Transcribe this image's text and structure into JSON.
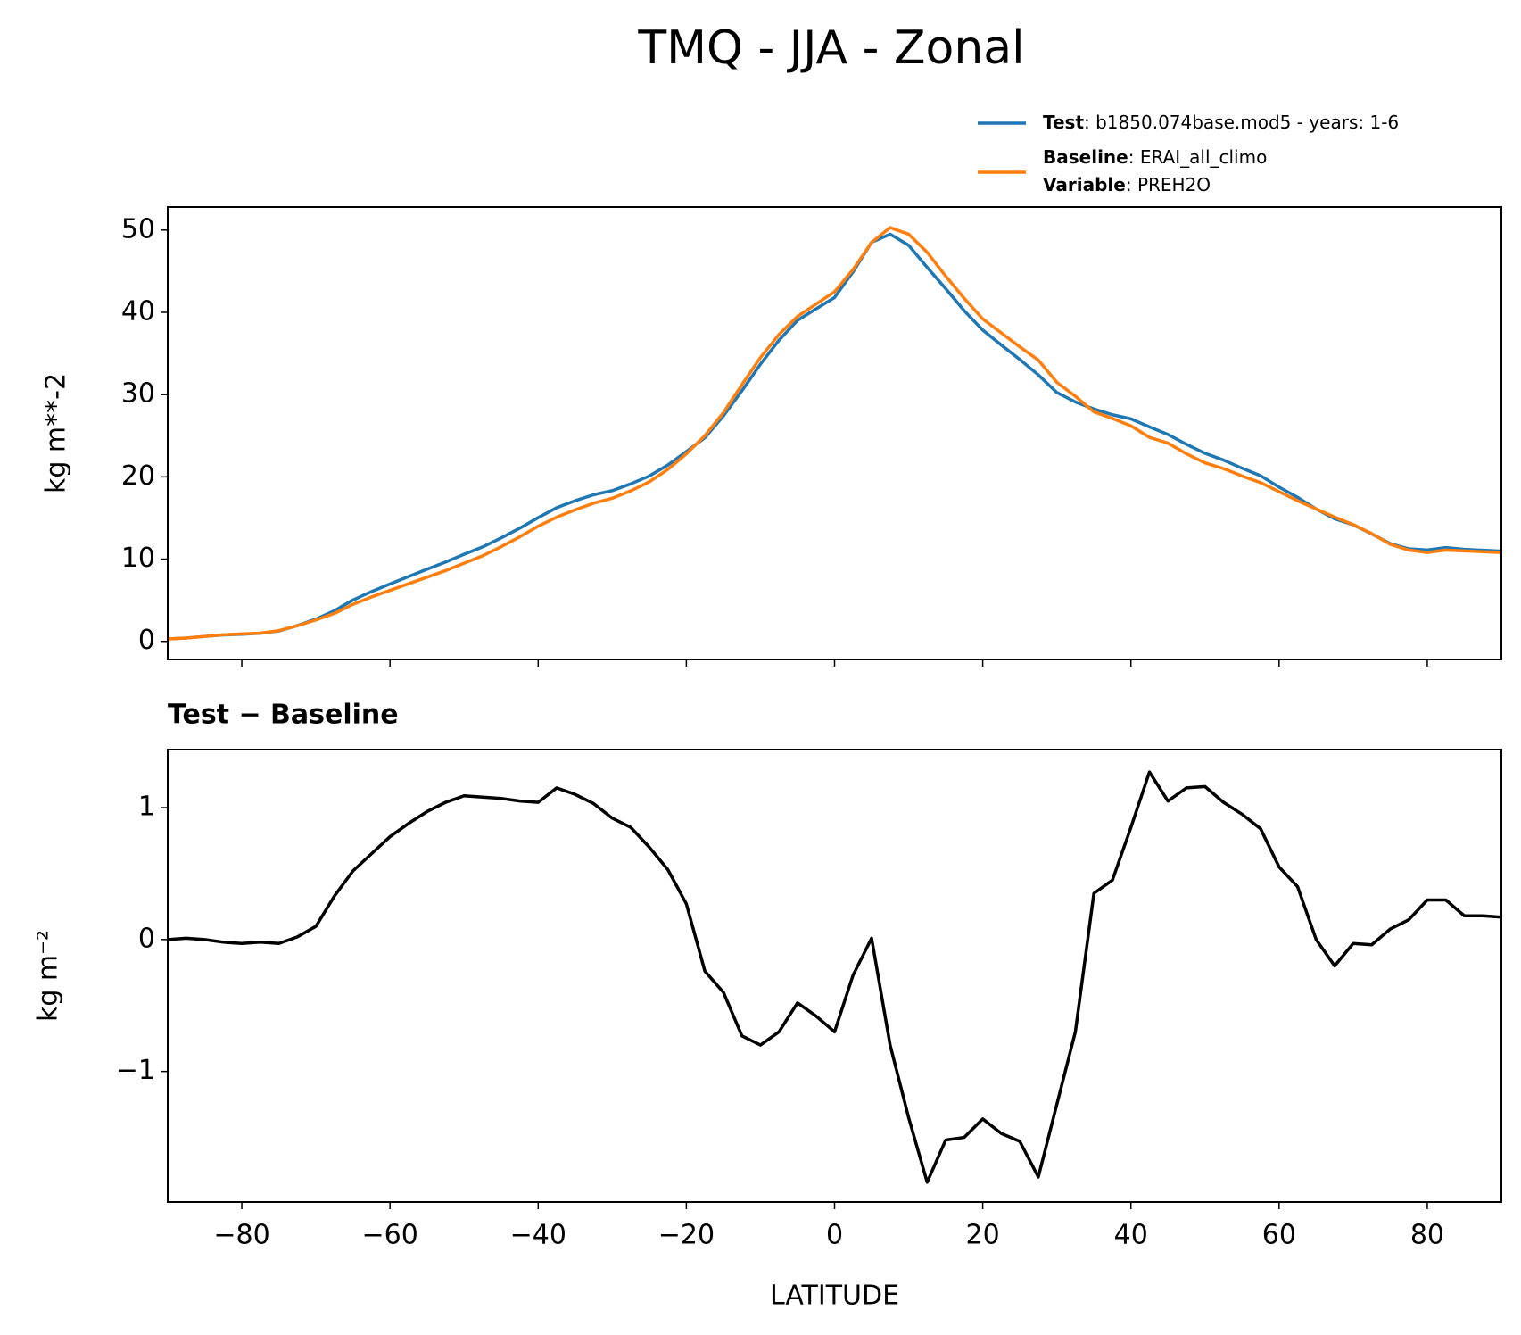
{
  "title": "TMQ - JJA - Zonal",
  "chart_data": [
    {
      "type": "line",
      "ylabel": "kg m**-2",
      "x": [
        -90,
        -87.5,
        -85,
        -82.5,
        -80,
        -77.5,
        -75,
        -72.5,
        -70,
        -67.5,
        -65,
        -62.5,
        -60,
        -57.5,
        -55,
        -52.5,
        -50,
        -47.5,
        -45,
        -42.5,
        -40,
        -37.5,
        -35,
        -32.5,
        -30,
        -27.5,
        -25,
        -22.5,
        -20,
        -17.5,
        -15,
        -12.5,
        -10,
        -7.5,
        -5,
        -2.5,
        0,
        2.5,
        5,
        7.5,
        10,
        12.5,
        15,
        17.5,
        20,
        22.5,
        25,
        27.5,
        30,
        32.5,
        35,
        37.5,
        40,
        42.5,
        45,
        47.5,
        50,
        52.5,
        55,
        57.5,
        60,
        62.5,
        65,
        67.5,
        70,
        72.5,
        75,
        77.5,
        80,
        82.5,
        85,
        87.5,
        90
      ],
      "series": [
        {
          "name": "Test",
          "detail": ": b1850.074base.mod5 - years: 1-6",
          "color": "#1f77b4",
          "values": [
            0.3,
            0.41,
            0.6,
            0.78,
            0.87,
            0.98,
            1.27,
            1.92,
            2.7,
            3.73,
            5.02,
            6.05,
            6.98,
            7.88,
            8.77,
            9.64,
            10.59,
            11.48,
            12.57,
            13.75,
            15.04,
            16.25,
            17.1,
            17.83,
            18.32,
            19.15,
            20.1,
            21.43,
            23.07,
            24.76,
            27.4,
            30.47,
            33.7,
            36.6,
            39.02,
            40.42,
            41.8,
            44.93,
            48.51,
            49.5,
            48.15,
            45.46,
            42.88,
            40.2,
            37.84,
            36.03,
            34.27,
            32.4,
            30.25,
            29.1,
            28.25,
            27.55,
            27.05,
            26.07,
            25.15,
            23.95,
            22.86,
            22.04,
            21.05,
            20.14,
            18.75,
            17.5,
            16.1,
            14.9,
            14.17,
            13.06,
            11.88,
            11.25,
            11.1,
            11.4,
            11.18,
            11.08,
            10.97
          ]
        },
        {
          "name": "Baseline",
          "detail": ": ERAI_all_climo",
          "color": "#ff7f0e",
          "values": [
            0.3,
            0.4,
            0.6,
            0.8,
            0.9,
            1.0,
            1.3,
            1.9,
            2.6,
            3.4,
            4.5,
            5.4,
            6.2,
            7.0,
            7.8,
            8.6,
            9.5,
            10.4,
            11.5,
            12.7,
            14.0,
            15.1,
            16.0,
            16.8,
            17.4,
            18.3,
            19.4,
            20.9,
            22.8,
            25.0,
            27.8,
            31.2,
            34.5,
            37.3,
            39.5,
            41.0,
            42.5,
            45.2,
            48.5,
            50.3,
            49.5,
            47.3,
            44.4,
            41.7,
            39.2,
            37.5,
            35.8,
            34.2,
            31.5,
            29.8,
            27.9,
            27.1,
            26.2,
            24.8,
            24.1,
            22.8,
            21.7,
            21.0,
            20.1,
            19.3,
            18.2,
            17.1,
            16.1,
            15.1,
            14.2,
            13.1,
            11.8,
            11.1,
            10.8,
            11.1,
            11.0,
            10.9,
            10.8
          ]
        }
      ],
      "legend_note": {
        "key": "Variable",
        "text": ": PREH2O"
      },
      "xlim": [
        -90,
        90
      ],
      "xticks": [
        -80,
        -60,
        -40,
        -20,
        0,
        20,
        40,
        60,
        80
      ],
      "ylim": [
        -2.2,
        52.8
      ],
      "yticks": [
        0,
        10,
        20,
        30,
        40,
        50
      ]
    },
    {
      "type": "line",
      "title": "Test − Baseline",
      "xlabel": "LATITUDE",
      "ylabel": "kg m⁻²",
      "x": [
        -90,
        -87.5,
        -85,
        -82.5,
        -80,
        -77.5,
        -75,
        -72.5,
        -70,
        -67.5,
        -65,
        -62.5,
        -60,
        -57.5,
        -55,
        -52.5,
        -50,
        -47.5,
        -45,
        -42.5,
        -40,
        -37.5,
        -35,
        -32.5,
        -30,
        -27.5,
        -25,
        -22.5,
        -20,
        -17.5,
        -15,
        -12.5,
        -10,
        -7.5,
        -5,
        -2.5,
        0,
        2.5,
        5,
        7.5,
        10,
        12.5,
        15,
        17.5,
        20,
        22.5,
        25,
        27.5,
        30,
        32.5,
        35,
        37.5,
        40,
        42.5,
        45,
        47.5,
        50,
        52.5,
        55,
        57.5,
        60,
        62.5,
        65,
        67.5,
        70,
        72.5,
        75,
        77.5,
        80,
        82.5,
        85,
        87.5,
        90
      ],
      "color": "#000000",
      "values": [
        0,
        0.01,
        0,
        -0.02,
        -0.03,
        -0.02,
        -0.03,
        0.02,
        0.1,
        0.33,
        0.52,
        0.65,
        0.78,
        0.88,
        0.97,
        1.04,
        1.09,
        1.08,
        1.07,
        1.05,
        1.04,
        1.15,
        1.1,
        1.03,
        0.92,
        0.85,
        0.7,
        0.53,
        0.27,
        -0.24,
        -0.4,
        -0.73,
        -0.8,
        -0.7,
        -0.48,
        -0.58,
        -0.7,
        -0.27,
        0.01,
        -0.8,
        -1.35,
        -1.84,
        -1.52,
        -1.5,
        -1.36,
        -1.47,
        -1.53,
        -1.8,
        -1.25,
        -0.7,
        0.35,
        0.45,
        0.85,
        1.27,
        1.05,
        1.15,
        1.16,
        1.04,
        0.95,
        0.84,
        0.55,
        0.4,
        0,
        -0.2,
        -0.03,
        -0.04,
        0.08,
        0.15,
        0.3,
        0.3,
        0.18,
        0.18,
        0.17
      ],
      "xlim": [
        -90,
        90
      ],
      "xticks": [
        {
          "value": -80,
          "label": "−80"
        },
        {
          "value": -60,
          "label": "−60"
        },
        {
          "value": -40,
          "label": "−40"
        },
        {
          "value": -20,
          "label": "−20"
        },
        0,
        20,
        40,
        60,
        80
      ],
      "ylim": [
        -1.99,
        1.44
      ],
      "yticks": [
        {
          "value": -1,
          "label": "−1"
        },
        0,
        1
      ]
    }
  ]
}
